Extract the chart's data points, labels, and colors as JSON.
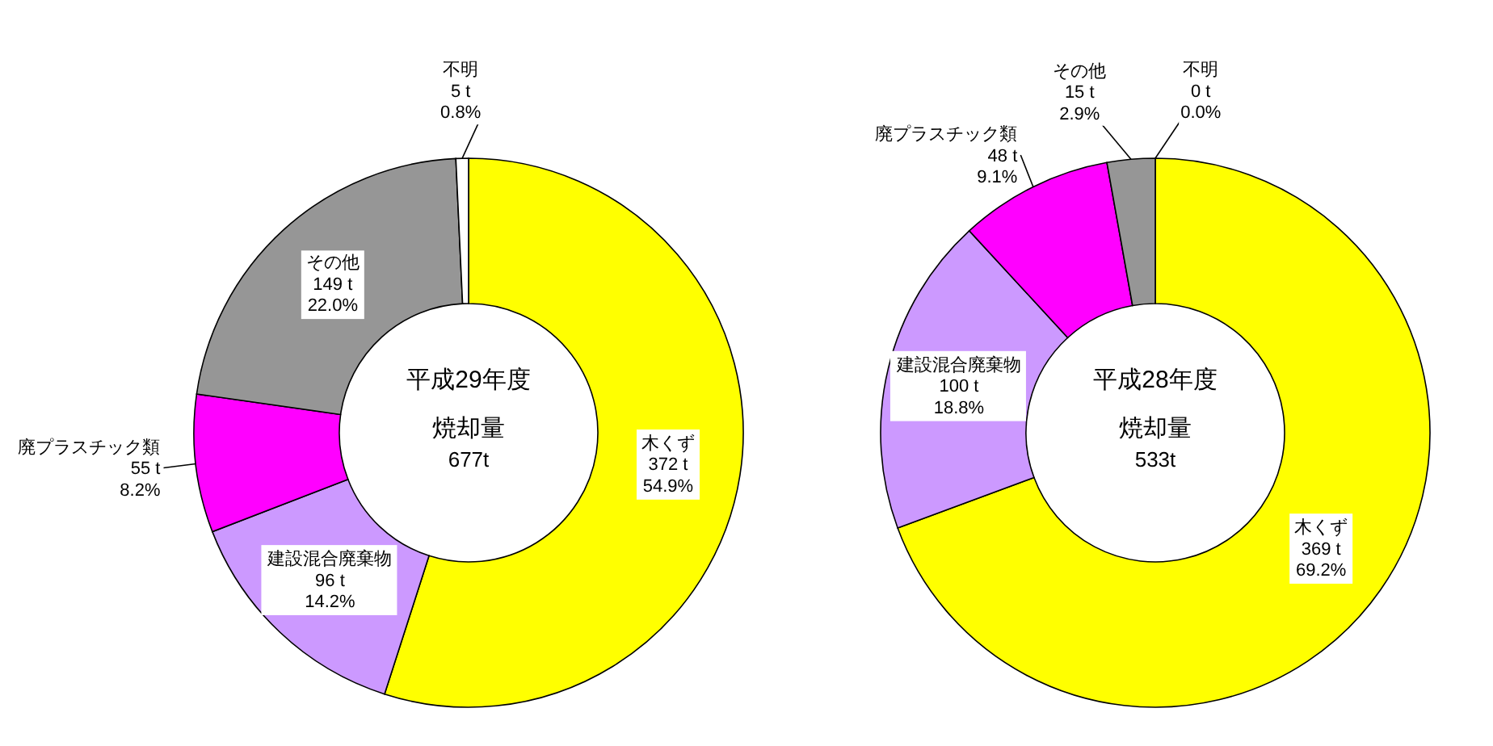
{
  "chart_data": [
    {
      "type": "donut",
      "title": "平成29年度",
      "annotations": [
        "焼却量",
        "677t"
      ],
      "categories": [
        "木くず",
        "建設混合廃棄物",
        "廃プラスチック類",
        "その他",
        "不明"
      ],
      "values": [
        372,
        96,
        55,
        149,
        5
      ],
      "value_labels": [
        "372 t\n54.9%",
        "96 t\n14.2%",
        "55 t\n8.2%",
        "149 t\n22.0%",
        "5 t\n0.8%"
      ],
      "colors": [
        "#ffff00",
        "#cc99ff",
        "#ff00ff",
        "#969696",
        "#ffffff"
      ]
    },
    {
      "type": "donut",
      "title": "平成28年度",
      "annotations": [
        "焼却量",
        "533t"
      ],
      "categories": [
        "木くず",
        "建設混合廃棄物",
        "廃プラスチック類",
        "その他",
        "不明"
      ],
      "values": [
        369,
        100,
        48,
        15,
        0
      ],
      "value_labels": [
        "369 t\n69.2%",
        "100 t\n18.8%",
        "48 t\n9.1%",
        "15 t\n2.9%",
        "0 t\n0.0%"
      ],
      "colors": [
        "#ffff00",
        "#cc99ff",
        "#ff00ff",
        "#969696",
        "#ffffff"
      ]
    }
  ]
}
